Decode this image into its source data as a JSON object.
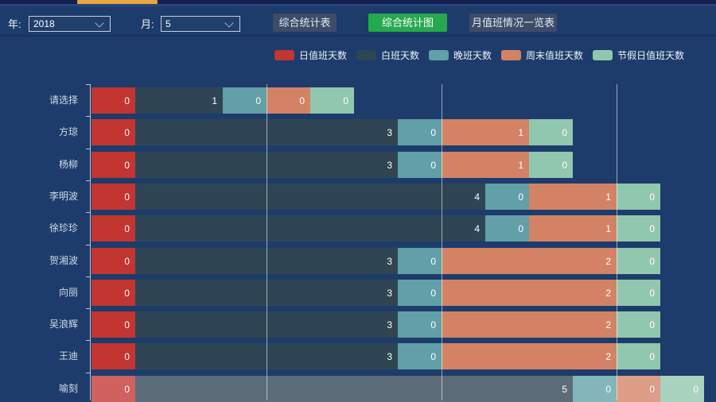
{
  "topbar": {
    "scroll_thumb_color": "#e9a63e"
  },
  "toolbar": {
    "year_label": "年:",
    "year_value": "2018",
    "month_label": "月:",
    "month_value": "5",
    "buttons": [
      {
        "label": "综合统计表",
        "active": false
      },
      {
        "label": "综合统计图",
        "active": true
      },
      {
        "label": "月值班情况一览表",
        "active": false
      }
    ],
    "active_color": "#25a94e",
    "inactive_color": "#3d4c68"
  },
  "chart_data": {
    "type": "bar",
    "orientation": "horizontal",
    "stacked": true,
    "categories": [
      "请选择",
      "方琼",
      "杨柳",
      "李明波",
      "徐珍珍",
      "贺湘波",
      "向丽",
      "吴浪辉",
      "王迪",
      "喻刻"
    ],
    "series": [
      {
        "name": "日值班天数",
        "color": "#c23531",
        "values": [
          0,
          0,
          0,
          0,
          0,
          0,
          0,
          0,
          0,
          0
        ]
      },
      {
        "name": "白班天数",
        "color": "#2f4554",
        "values": [
          1,
          3,
          3,
          4,
          4,
          3,
          3,
          3,
          3,
          5
        ]
      },
      {
        "name": "晚班天数",
        "color": "#61a0a8",
        "values": [
          0,
          0,
          0,
          0,
          0,
          0,
          0,
          0,
          0,
          0
        ]
      },
      {
        "name": "周末值班天数",
        "color": "#d48265",
        "values": [
          0,
          1,
          1,
          1,
          1,
          2,
          2,
          2,
          2,
          0
        ]
      },
      {
        "name": "节假日值班天数",
        "color": "#91c7ae",
        "values": [
          0,
          0,
          0,
          0,
          0,
          0,
          0,
          0,
          0,
          0
        ]
      }
    ],
    "xaxis": {
      "min": 0,
      "gridline_values": [
        2,
        4,
        6
      ]
    },
    "highlighted_category": "喻刻",
    "legend_position": "top",
    "grid_on": true
  }
}
